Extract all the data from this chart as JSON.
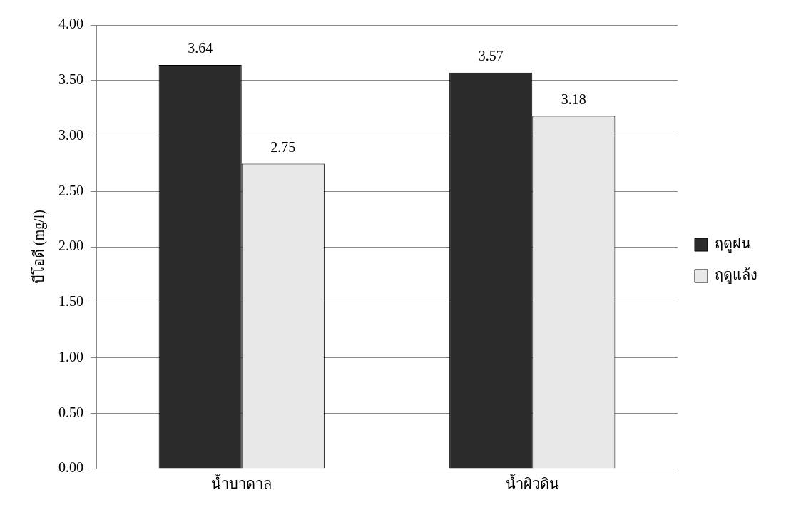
{
  "chart_data": {
    "type": "bar",
    "ylabel": "บีโอดี (mg/l)",
    "categories": [
      "น้ำบาดาล",
      "น้ำผิวดิน"
    ],
    "series": [
      {
        "name": "ฤดูฝน",
        "color": "#2b2b2b",
        "values": [
          3.64,
          3.57
        ]
      },
      {
        "name": "ฤดูแล้ง",
        "color": "#e8e8e8",
        "values": [
          2.75,
          3.18
        ]
      }
    ],
    "ylim": [
      0,
      4
    ],
    "yticks": [
      {
        "value": 0,
        "label": "0.00"
      },
      {
        "value": 0.5,
        "label": "0.50"
      },
      {
        "value": 1,
        "label": "1.00"
      },
      {
        "value": 1.5,
        "label": "1.50"
      },
      {
        "value": 2,
        "label": "2.00"
      },
      {
        "value": 2.5,
        "label": "2.50"
      },
      {
        "value": 3,
        "label": "3.00"
      },
      {
        "value": 3.5,
        "label": "3.50"
      },
      {
        "value": 4,
        "label": "4.00"
      }
    ],
    "grid": "y",
    "legend": "right",
    "data_labels": true
  }
}
